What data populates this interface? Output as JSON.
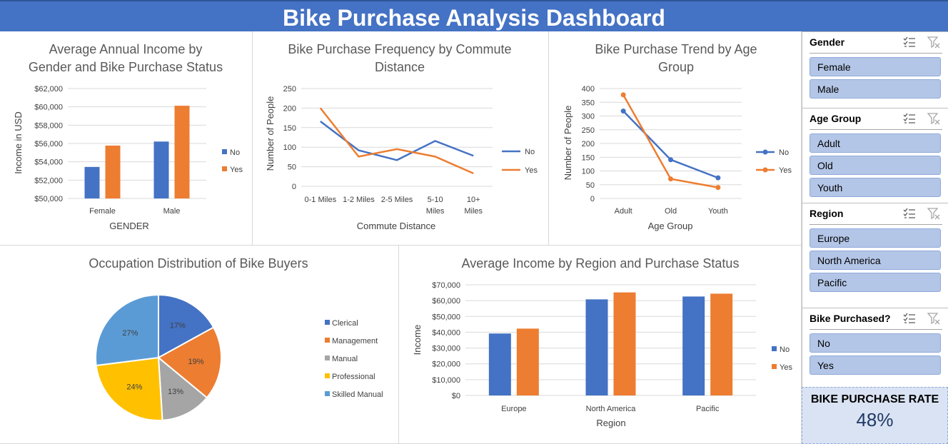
{
  "title": "Bike Purchase Analysis Dashboard",
  "colors": {
    "no": "#4472c4",
    "yes": "#ed7d31",
    "header": "#4472c4",
    "slicer_button": "#b4c6e7"
  },
  "charts": {
    "income_gender": {
      "title_l1": "Average Annual Income by",
      "title_l2": "Gender and Bike Purchase Status",
      "xlabel": "GENDER",
      "ylabel": "Income in USD"
    },
    "commute": {
      "title_l1": "Bike Purchase Frequency by Commute",
      "title_l2": "Distance",
      "xlabel": "Commute Distance",
      "ylabel": "Number of People"
    },
    "age": {
      "title_l1": "Bike Purchase Trend by Age",
      "title_l2": "Group",
      "xlabel": "Age Group",
      "ylabel": "Number of People"
    },
    "occupation": {
      "title": "Occupation Distribution of Bike Buyers"
    },
    "region": {
      "title": "Average Income by Region and Purchase Status",
      "xlabel": "Region",
      "ylabel": "Income"
    }
  },
  "chart_data": [
    {
      "id": "income_gender",
      "type": "bar",
      "title": "Average Annual Income by Gender and Bike Purchase Status",
      "xlabel": "GENDER",
      "ylabel": "Income in USD",
      "categories": [
        "Female",
        "Male"
      ],
      "series": [
        {
          "name": "No",
          "values": [
            53440,
            56210
          ]
        },
        {
          "name": "Yes",
          "values": [
            55770,
            60120
          ]
        }
      ],
      "ylim": [
        50000,
        62000
      ],
      "yticks": [
        "$50,000",
        "$52,000",
        "$54,000",
        "$56,000",
        "$58,000",
        "$60,000",
        "$62,000"
      ],
      "legend": "right",
      "grid": true
    },
    {
      "id": "commute",
      "type": "line",
      "title": "Bike Purchase Frequency by Commute Distance",
      "xlabel": "Commute Distance",
      "ylabel": "Number of People",
      "categories": [
        [
          "0-1 Miles"
        ],
        [
          "1-2 Miles"
        ],
        [
          "2-5 Miles"
        ],
        [
          "5-10",
          "Miles"
        ],
        [
          "10+",
          "Miles"
        ]
      ],
      "series": [
        {
          "name": "No",
          "values": [
            166,
            92,
            67,
            116,
            78
          ]
        },
        {
          "name": "Yes",
          "values": [
            200,
            76,
            95,
            76,
            33
          ]
        }
      ],
      "ylim": [
        0,
        250
      ],
      "yticks": [
        "0",
        "50",
        "100",
        "150",
        "200",
        "250"
      ],
      "legend": "right",
      "grid": true
    },
    {
      "id": "age",
      "type": "line",
      "title": "Bike Purchase Trend by Age Group",
      "xlabel": "Age Group",
      "ylabel": "Number of People",
      "categories": [
        "Adult",
        "Old",
        "Youth"
      ],
      "series": [
        {
          "name": "No",
          "values": [
            318,
            141,
            75
          ]
        },
        {
          "name": "Yes",
          "values": [
            377,
            71,
            40
          ]
        }
      ],
      "ylim": [
        0,
        400
      ],
      "yticks": [
        "0",
        "50",
        "100",
        "150",
        "200",
        "250",
        "300",
        "350",
        "400"
      ],
      "legend": "right",
      "grid": true,
      "markers": true
    },
    {
      "id": "occupation",
      "type": "pie",
      "title": "Occupation Distribution of Bike Buyers",
      "slices": [
        {
          "name": "Clerical",
          "value": 17,
          "label": "17%",
          "color": "#4472c4"
        },
        {
          "name": "Management",
          "value": 19,
          "label": "19%",
          "color": "#ed7d31"
        },
        {
          "name": "Manual",
          "value": 13,
          "label": "13%",
          "color": "#a5a5a5"
        },
        {
          "name": "Professional",
          "value": 24,
          "label": "24%",
          "color": "#ffc000"
        },
        {
          "name": "Skilled Manual",
          "value": 27,
          "label": "27%",
          "color": "#5b9bd5"
        }
      ],
      "legend": "right"
    },
    {
      "id": "region",
      "type": "bar",
      "title": "Average Income by Region and Purchase Status",
      "xlabel": "Region",
      "ylabel": "Income",
      "categories": [
        "Europe",
        "North America",
        "Pacific"
      ],
      "series": [
        {
          "name": "No",
          "values": [
            39200,
            60800,
            62600
          ]
        },
        {
          "name": "Yes",
          "values": [
            42300,
            65200,
            64400
          ]
        }
      ],
      "ylim": [
        0,
        70000
      ],
      "yticks": [
        "$0",
        "$10,000",
        "$20,000",
        "$30,000",
        "$40,000",
        "$50,000",
        "$60,000",
        "$70,000"
      ],
      "legend": "right",
      "grid": true
    }
  ],
  "slicers": [
    {
      "title": "Gender",
      "items": [
        "Female",
        "Male"
      ]
    },
    {
      "title": "Age Group",
      "items": [
        "Adult",
        "Old",
        "Youth"
      ]
    },
    {
      "title": "Region",
      "items": [
        "Europe",
        "North America",
        "Pacific"
      ]
    },
    {
      "title": "Bike Purchased?",
      "items": [
        "No",
        "Yes"
      ]
    }
  ],
  "kpi": {
    "label": "BIKE PURCHASE RATE",
    "value": "48%"
  }
}
